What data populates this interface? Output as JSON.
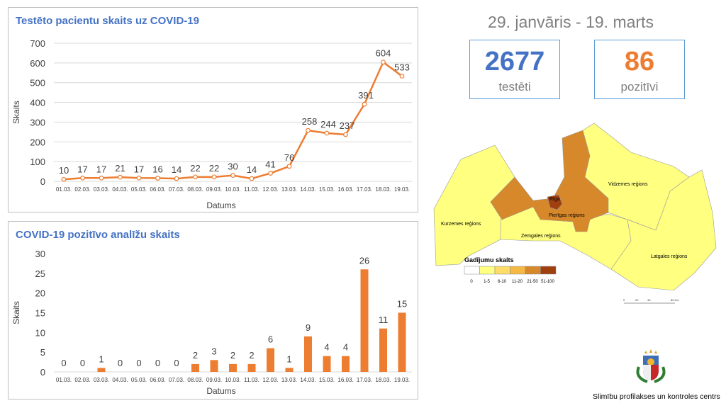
{
  "header": {
    "date_range": "29. janvāris - 19. marts",
    "tested": {
      "value": "2677",
      "label": "testēti",
      "color": "#4472c4"
    },
    "positive": {
      "value": "86",
      "label": "pozitīvi",
      "color": "#ed7d31"
    }
  },
  "chart_data": [
    {
      "type": "line",
      "title": "Testēto pacientu skaits uz COVID-19",
      "xlabel": "Datums",
      "ylabel": "Skaits",
      "ylim": [
        0,
        700
      ],
      "yticks": [
        "0",
        "100",
        "200",
        "300",
        "400",
        "500",
        "600",
        "700"
      ],
      "categories": [
        "01.03.",
        "02.03.",
        "03.03.",
        "04.03.",
        "05.03.",
        "06.03.",
        "07.03.",
        "08.03.",
        "09.03.",
        "10.03.",
        "11.03.",
        "12.03.",
        "13.03.",
        "14.03.",
        "15.03.",
        "16.03.",
        "17.03.",
        "18.03.",
        "19.03."
      ],
      "values": [
        10,
        17,
        17,
        21,
        17,
        16,
        14,
        22,
        22,
        30,
        14,
        41,
        76,
        258,
        244,
        237,
        391,
        604,
        533
      ],
      "color": "#ed7d31",
      "grid": true
    },
    {
      "type": "bar",
      "title": "COVID-19 pozitīvo analīžu skaits",
      "xlabel": "Datums",
      "ylabel": "Skaits",
      "ylim": [
        0,
        30
      ],
      "yticks": [
        "0",
        "5",
        "10",
        "15",
        "20",
        "25",
        "30"
      ],
      "categories": [
        "01.03.",
        "02.03.",
        "03.03.",
        "04.03.",
        "05.03.",
        "06.03.",
        "07.03.",
        "08.03.",
        "09.03.",
        "10.03.",
        "11.03.",
        "12.03.",
        "13.03.",
        "14.03.",
        "15.03.",
        "16.03.",
        "17.03.",
        "18.03.",
        "19.03."
      ],
      "values": [
        0,
        0,
        1,
        0,
        0,
        0,
        0,
        2,
        3,
        2,
        2,
        6,
        1,
        9,
        4,
        4,
        26,
        11,
        15
      ],
      "color": "#ed7d31",
      "grid": false
    }
  ],
  "map": {
    "regions": {
      "kurzeme": "Kurzemes reģions",
      "zemgale": "Zemgales reģions",
      "pieriga": "Pierīgas reģions",
      "riga": "Rīga",
      "vidzeme": "Vidzemes reģions",
      "latgale": "Latgales reģions"
    },
    "legend_title": "Gadījumu skaits",
    "legend": [
      {
        "label": "0",
        "color": "#ffffff"
      },
      {
        "label": "1-5",
        "color": "#ffff80"
      },
      {
        "label": "6-10",
        "color": "#fddc6a"
      },
      {
        "label": "11-20",
        "color": "#f6b845"
      },
      {
        "label": "21-50",
        "color": "#d7882a"
      },
      {
        "label": "51-100",
        "color": "#a0400f"
      }
    ],
    "scale": [
      "0",
      "20",
      "40",
      "80 Km"
    ]
  },
  "footer": {
    "org": "Slimību profilakses un kontroles centrs"
  }
}
